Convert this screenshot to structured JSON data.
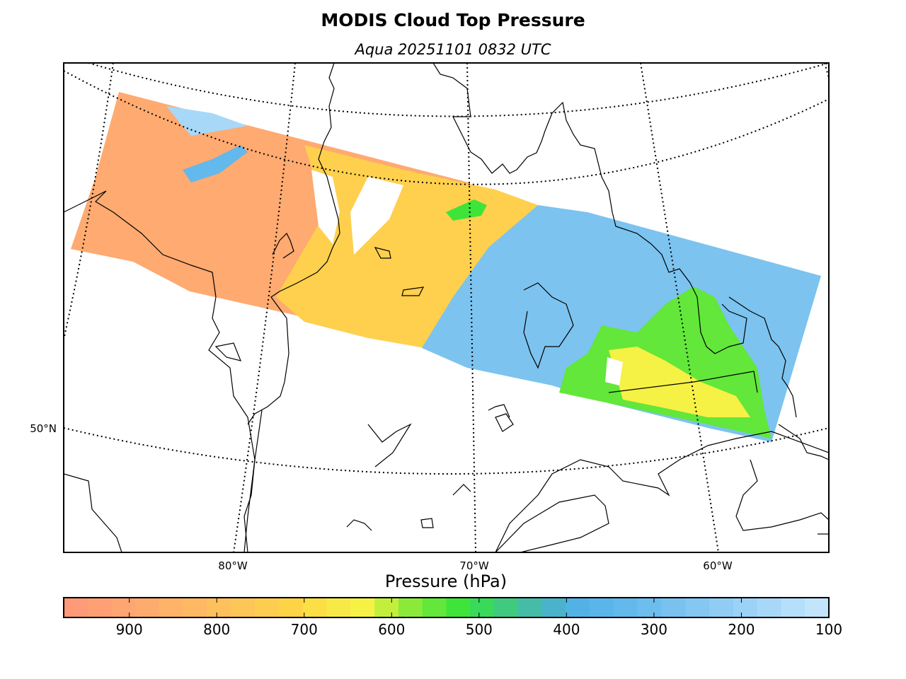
{
  "header": {
    "title": "MODIS Cloud Top Pressure",
    "subtitle": "Aqua 20251101 0832 UTC"
  },
  "map": {
    "longitude_labels": [
      "80°W",
      "70°W",
      "60°W"
    ],
    "latitude_labels": [
      "50°N"
    ],
    "graticule_style": "dotted",
    "coastline_color": "#000000"
  },
  "colorbar": {
    "label": "Pressure (hPa)",
    "ticks": [
      "900",
      "800",
      "700",
      "600",
      "500",
      "400",
      "300",
      "200",
      "100"
    ],
    "range_hpa": [
      975,
      100
    ],
    "colors": [
      "#fe9a77",
      "#fea073",
      "#fea671",
      "#feac6d",
      "#feb368",
      "#feb962",
      "#fec05d",
      "#fec656",
      "#fecd4f",
      "#fed446",
      "#fbdf45",
      "#f8ea46",
      "#f6f145",
      "#c3ef3c",
      "#8bea39",
      "#62e73a",
      "#3fe43a",
      "#39da5a",
      "#3fca7f",
      "#45bca6",
      "#49b3cc",
      "#52b2e6",
      "#5ab5ea",
      "#63b8ec",
      "#6dbdee",
      "#78c1f0",
      "#83c7f2",
      "#8fcdf4",
      "#9bd2f6",
      "#a8d8f8",
      "#b5dffa",
      "#c2e5fc"
    ]
  }
}
